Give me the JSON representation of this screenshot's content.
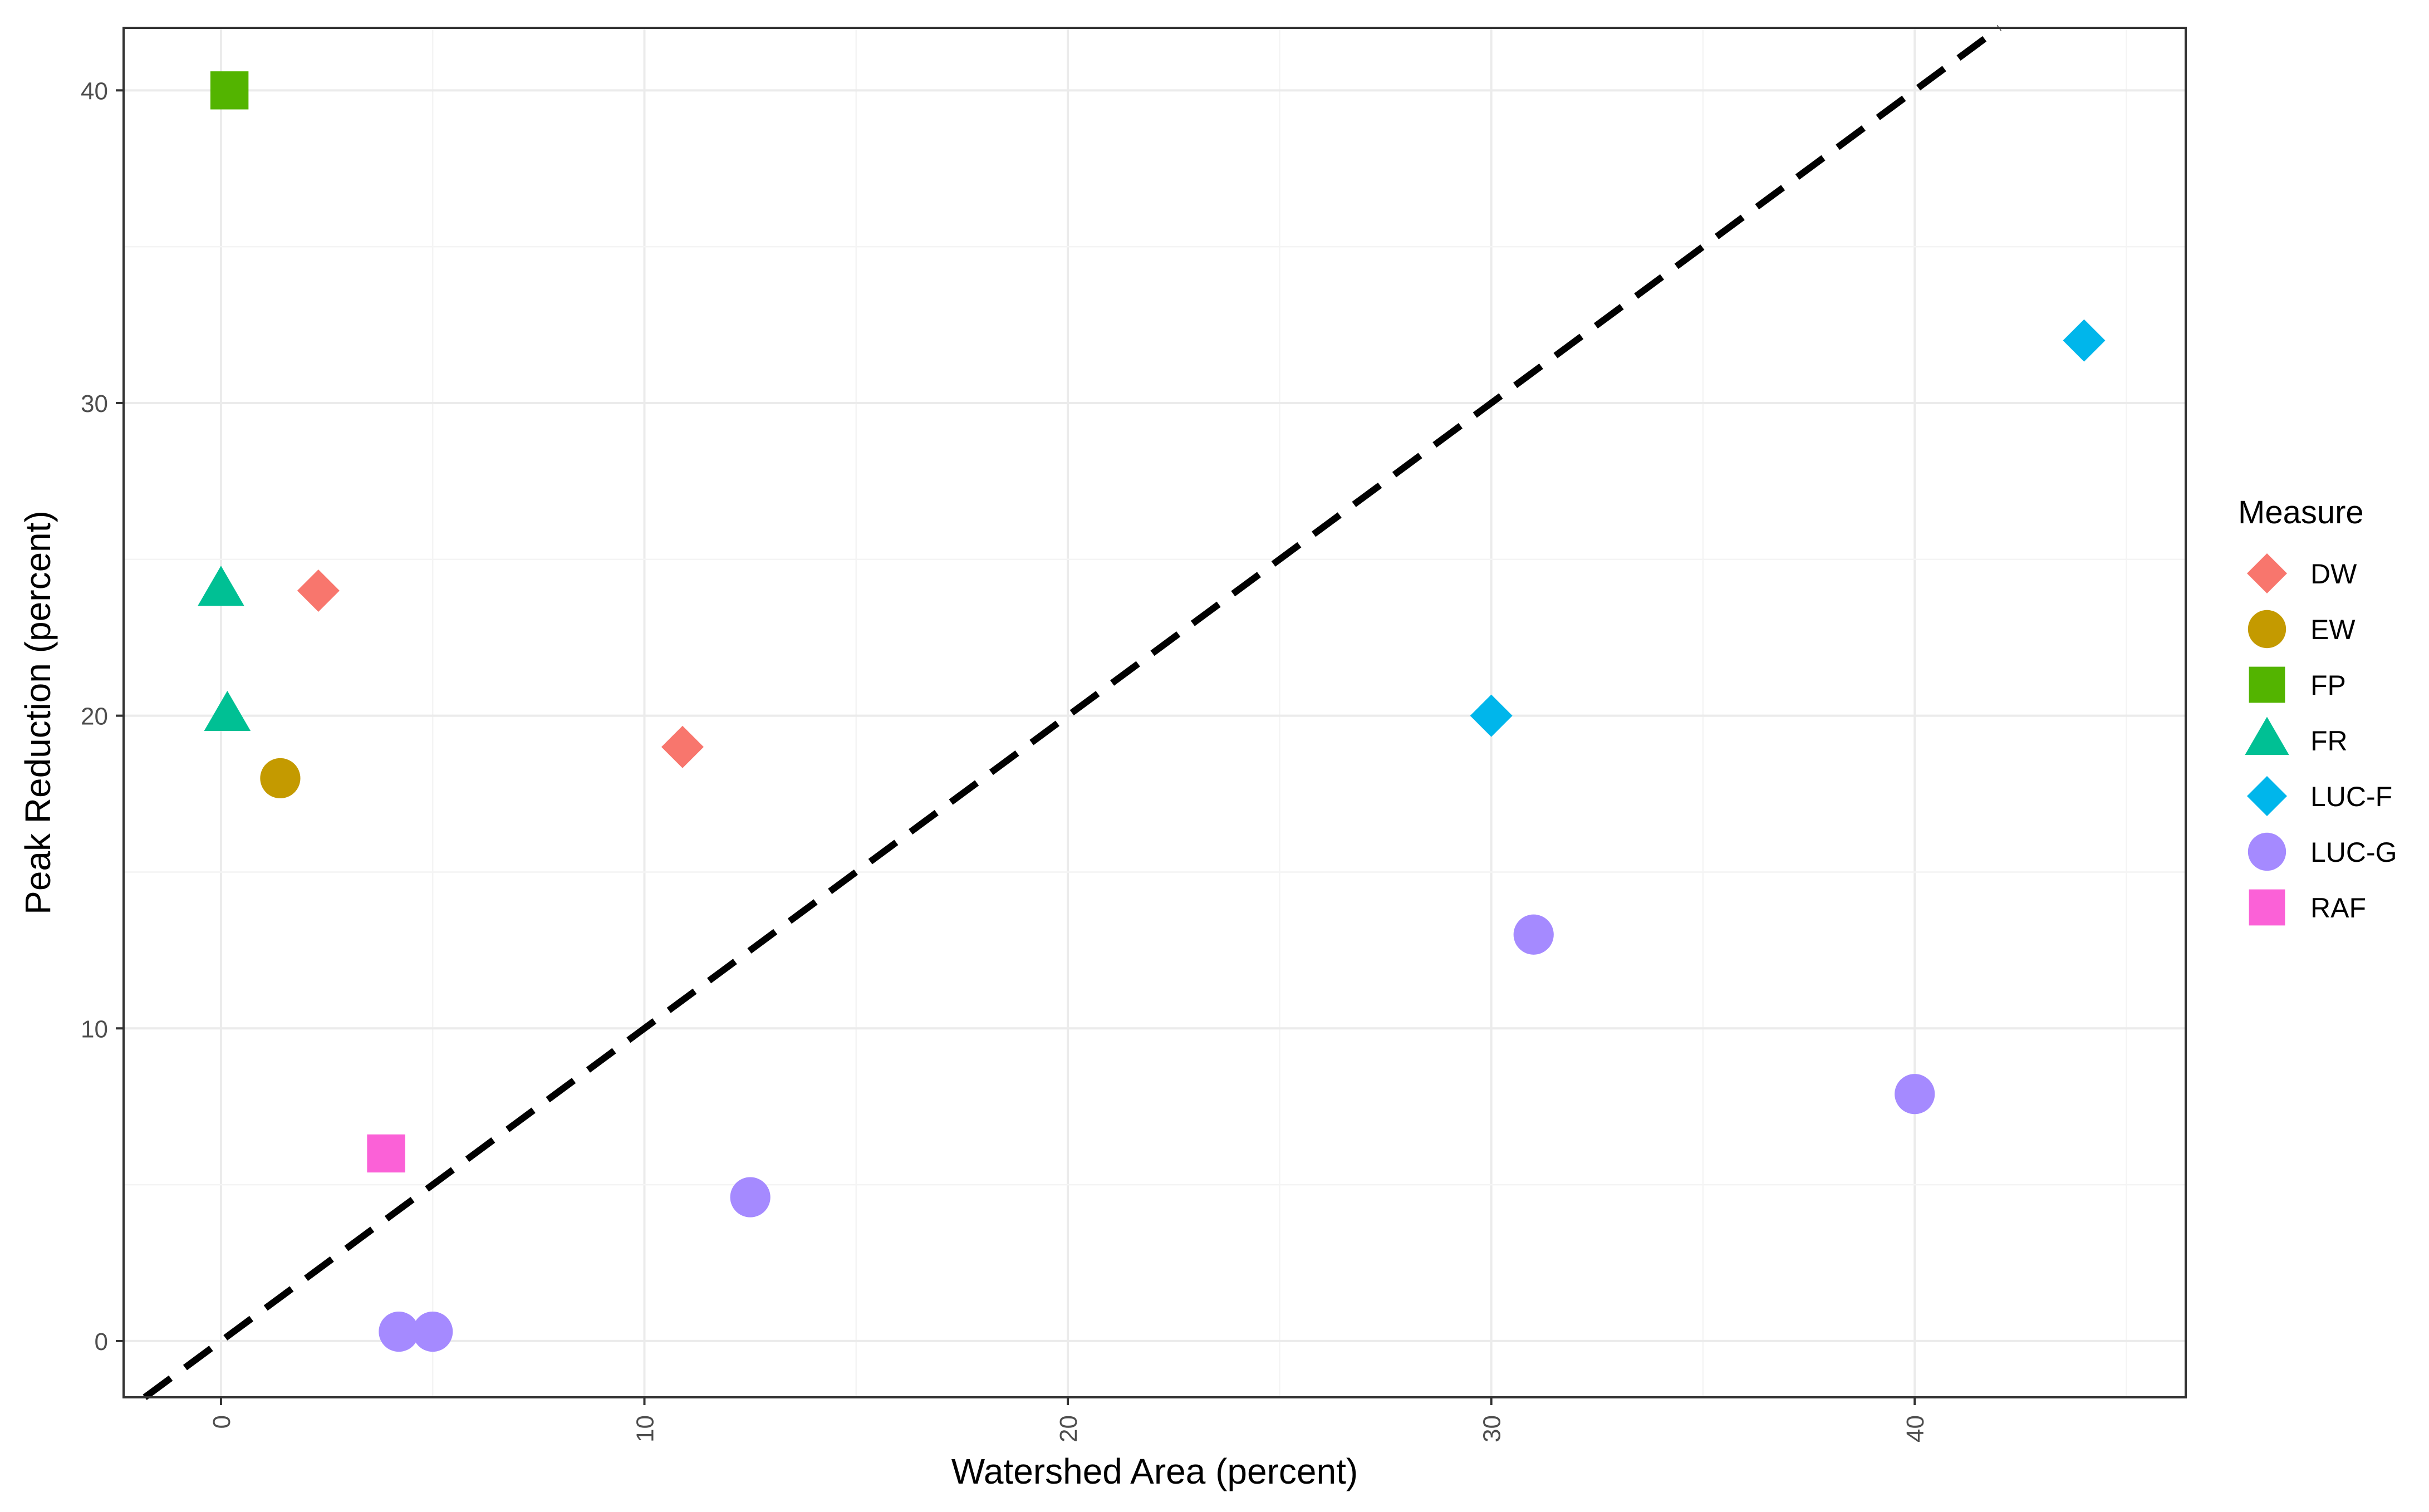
{
  "chart_data": {
    "type": "scatter",
    "title": "",
    "xlabel": "Watershed Area (percent)",
    "ylabel": "Peak Reduction (percent)",
    "xlim": [
      -2.3,
      46.4
    ],
    "ylim": [
      -1.8,
      42.0
    ],
    "xticks": [
      0,
      10,
      20,
      30,
      40
    ],
    "yticks": [
      0,
      10,
      20,
      30,
      40
    ],
    "grid": true,
    "legend": {
      "title": "Measure",
      "position": "right"
    },
    "reference_line": {
      "style": "dashed",
      "color": "#000000",
      "slope": 1,
      "intercept": 0
    },
    "series": [
      {
        "name": "DW",
        "shape": "diamond",
        "color": "#F8766D",
        "points": [
          {
            "x": 2.3,
            "y": 24
          },
          {
            "x": 10.9,
            "y": 19
          }
        ]
      },
      {
        "name": "EW",
        "shape": "circle",
        "color": "#C49A00",
        "points": [
          {
            "x": 1.4,
            "y": 18
          }
        ]
      },
      {
        "name": "FP",
        "shape": "square",
        "color": "#53B400",
        "points": [
          {
            "x": 0.2,
            "y": 40
          }
        ]
      },
      {
        "name": "FR",
        "shape": "triangle",
        "color": "#00C094",
        "points": [
          {
            "x": 0.0,
            "y": 24
          },
          {
            "x": 0.15,
            "y": 20
          }
        ]
      },
      {
        "name": "LUC-F",
        "shape": "diamond",
        "color": "#00B6EB",
        "points": [
          {
            "x": 30.0,
            "y": 20
          },
          {
            "x": 44.0,
            "y": 32
          }
        ]
      },
      {
        "name": "LUC-G",
        "shape": "circle",
        "color": "#A58AFF",
        "points": [
          {
            "x": 4.2,
            "y": 0.3
          },
          {
            "x": 5.0,
            "y": 0.3
          },
          {
            "x": 12.5,
            "y": 4.6
          },
          {
            "x": 31.0,
            "y": 13
          },
          {
            "x": 40.0,
            "y": 7.9
          }
        ]
      },
      {
        "name": "RAF",
        "shape": "square",
        "color": "#FB61D7",
        "points": [
          {
            "x": 3.9,
            "y": 6
          }
        ]
      }
    ]
  }
}
